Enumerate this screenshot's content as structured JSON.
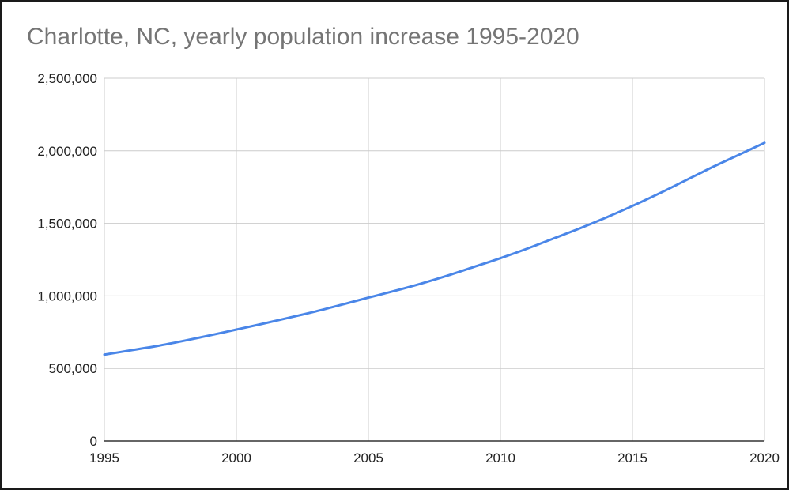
{
  "chart_data": {
    "type": "line",
    "title": "Charlotte, NC, yearly population increase 1995-2020",
    "xlabel": "",
    "ylabel": "",
    "x": [
      1995,
      1996,
      1997,
      1998,
      1999,
      2000,
      2001,
      2002,
      2003,
      2004,
      2005,
      2006,
      2007,
      2008,
      2009,
      2010,
      2011,
      2012,
      2013,
      2014,
      2015,
      2016,
      2017,
      2018,
      2019,
      2020
    ],
    "series": [
      {
        "name": "",
        "color": "#4a86e8",
        "values": [
          595000,
          625000,
          655000,
          690000,
          728000,
          768000,
          808000,
          850000,
          893000,
          940000,
          988000,
          1035000,
          1085000,
          1140000,
          1200000,
          1260000,
          1325000,
          1395000,
          1465000,
          1540000,
          1620000,
          1705000,
          1795000,
          1885000,
          1970000,
          2055000
        ]
      }
    ],
    "xticks": [
      "1995",
      "2000",
      "2005",
      "2010",
      "2015",
      "2020"
    ],
    "xtick_values": [
      1995,
      2000,
      2005,
      2010,
      2015,
      2020
    ],
    "yticks": [
      "0",
      "500,000",
      "1,000,000",
      "1,500,000",
      "2,000,000",
      "2,500,000"
    ],
    "ytick_values": [
      0,
      500000,
      1000000,
      1500000,
      2000000,
      2500000
    ],
    "xlim": [
      1995,
      2020
    ],
    "ylim": [
      0,
      2500000
    ],
    "grid": true,
    "legend": "none"
  }
}
